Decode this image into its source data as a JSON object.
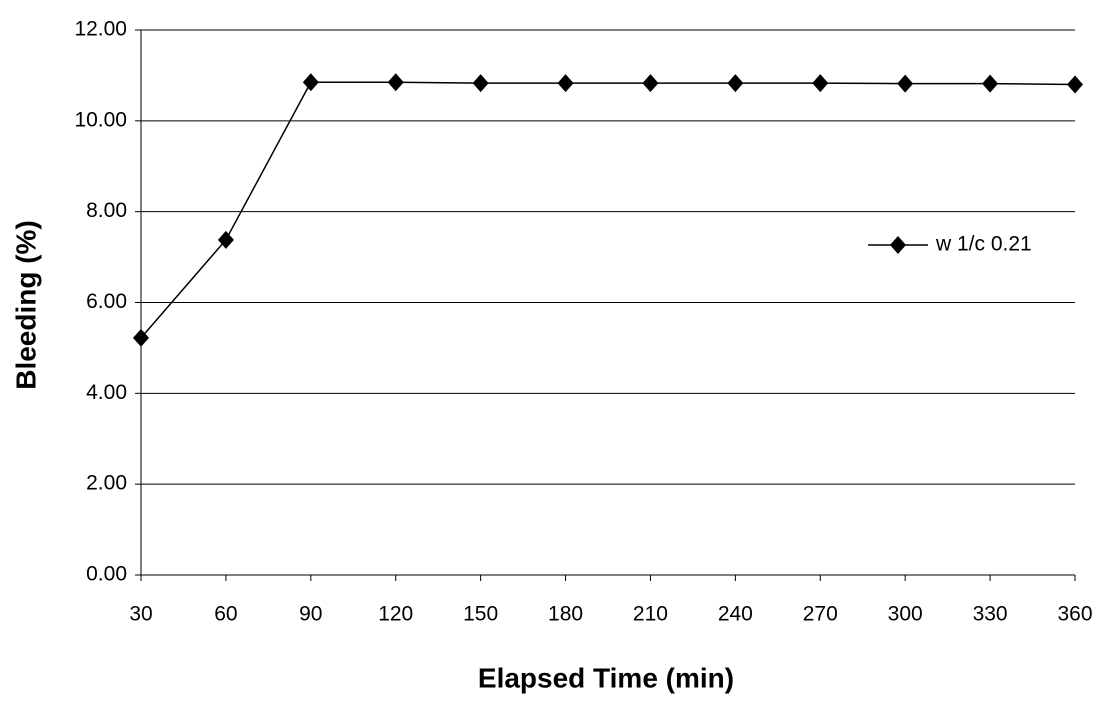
{
  "chart_data": {
    "type": "line",
    "x_label": "Elapsed Time (min)",
    "y_label": "Bleeding (%)",
    "x": [
      30,
      60,
      90,
      120,
      150,
      180,
      210,
      240,
      270,
      300,
      330,
      360
    ],
    "series": [
      {
        "name": "w 1/c 0.21",
        "color": "#000000",
        "values": [
          5.22,
          7.38,
          10.85,
          10.85,
          10.83,
          10.83,
          10.83,
          10.83,
          10.83,
          10.82,
          10.82,
          10.8
        ]
      }
    ],
    "xlim": [
      30,
      360
    ],
    "xticks": [
      30,
      60,
      90,
      120,
      150,
      180,
      210,
      240,
      270,
      300,
      330,
      360
    ],
    "ylim": [
      0,
      12
    ],
    "yticks": [
      {
        "value": 0,
        "label": "0.00"
      },
      {
        "value": 2,
        "label": "2.00"
      },
      {
        "value": 4,
        "label": "4.00"
      },
      {
        "value": 6,
        "label": "6.00"
      },
      {
        "value": 8,
        "label": "8.00"
      },
      {
        "value": 10,
        "label": "10.00"
      },
      {
        "value": 12,
        "label": "12.00"
      }
    ],
    "grid": true,
    "legend": "right"
  }
}
